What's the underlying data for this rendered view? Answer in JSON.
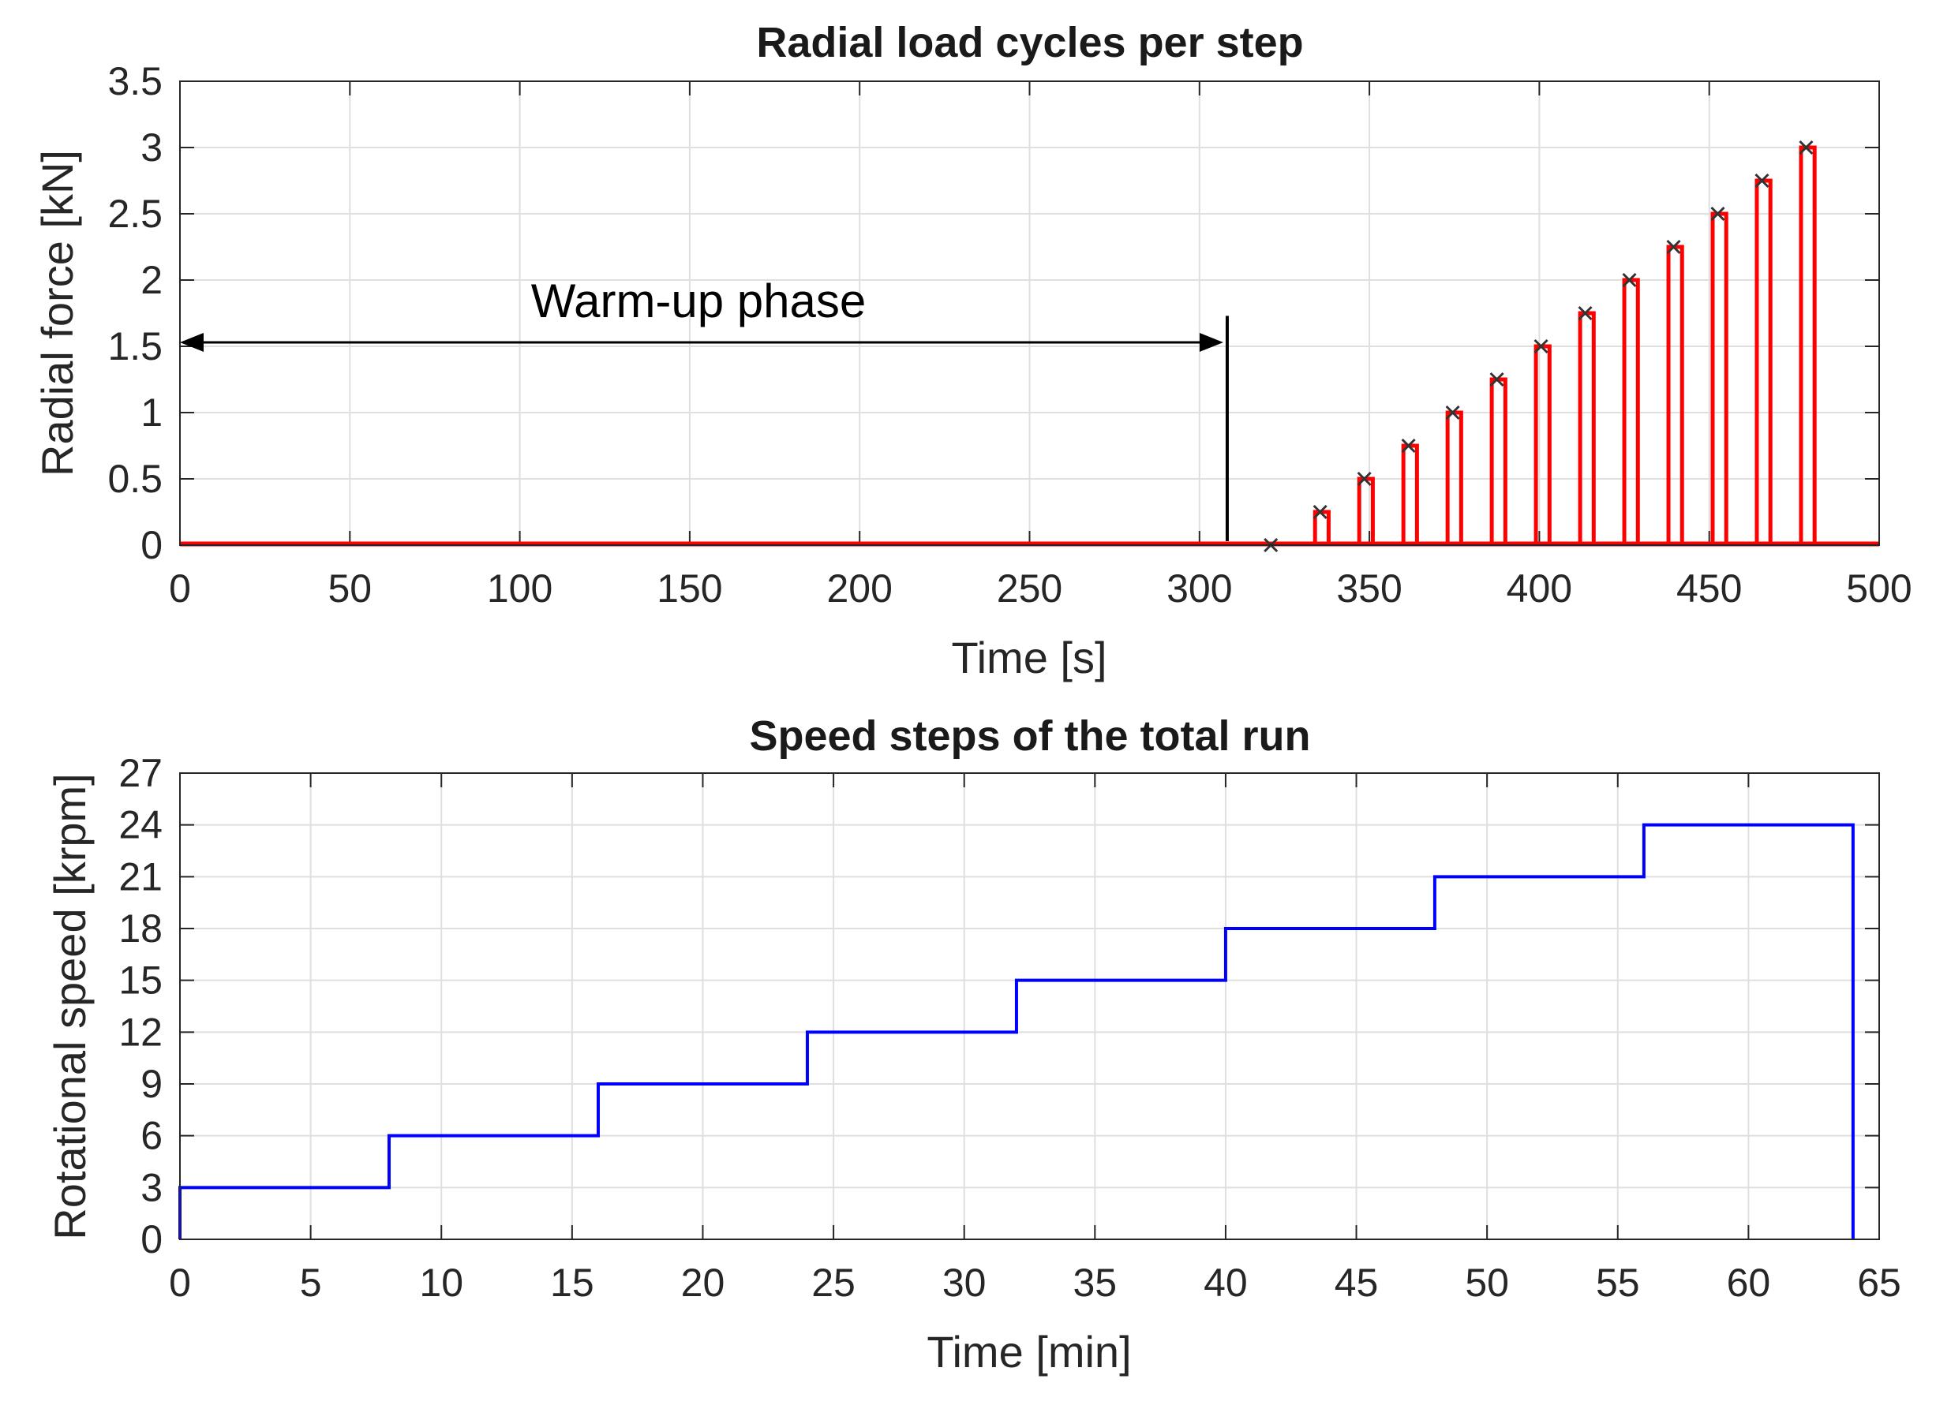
{
  "chart_data": [
    {
      "type": "line",
      "title": "Radial load cycles per step",
      "xlabel": "Time [s]",
      "ylabel": "Radial force [kN]",
      "xlim": [
        0,
        500
      ],
      "ylim": [
        0,
        3.5
      ],
      "xticks": [
        0,
        50,
        100,
        150,
        200,
        250,
        300,
        350,
        400,
        450,
        500
      ],
      "yticks": [
        0,
        0.5,
        1,
        1.5,
        2,
        2.5,
        3,
        3.5
      ],
      "xtick_labels": [
        "0",
        "50",
        "100",
        "150",
        "200",
        "250",
        "300",
        "350",
        "400",
        "450",
        "500"
      ],
      "ytick_labels": [
        "0",
        "0.5",
        "1",
        "1.5",
        "2",
        "2.5",
        "3",
        "3.5"
      ],
      "grid": true,
      "series": [
        {
          "name": "Radial force",
          "color": "#ff0000",
          "pulse_width": 4,
          "pulse_starts": [
            334,
            347,
            360,
            373,
            386,
            399,
            412,
            425,
            438,
            451,
            464,
            477
          ],
          "pulse_levels": [
            0.25,
            0.5,
            0.75,
            1.0,
            1.25,
            1.5,
            1.75,
            2.0,
            2.25,
            2.5,
            2.75,
            3.0
          ],
          "end_time": 500
        }
      ],
      "markers": {
        "color": "#333333",
        "symbol": "x",
        "x": [
          321,
          335.5,
          348.5,
          361.5,
          374.5,
          387.5,
          400.5,
          413.5,
          426.5,
          439.5,
          452.5,
          465.5,
          478.5
        ],
        "y": [
          0,
          0.25,
          0.5,
          0.75,
          1.0,
          1.25,
          1.5,
          1.75,
          2.0,
          2.25,
          2.5,
          2.75,
          3.0
        ]
      },
      "annotation": {
        "text": "Warm-up phase",
        "arrow_from_x": 0,
        "arrow_to_x": 307,
        "arrow_y": 1.53,
        "vertical_line_x": 307,
        "vertical_line_y_range": [
          0.03,
          1.73
        ]
      }
    },
    {
      "type": "line",
      "title": "Speed steps of the total run",
      "xlabel": "Time [min]",
      "ylabel": "Rotational speed [krpm]",
      "xlim": [
        0,
        65
      ],
      "ylim": [
        0,
        27
      ],
      "xticks": [
        0,
        5,
        10,
        15,
        20,
        25,
        30,
        35,
        40,
        45,
        50,
        55,
        60,
        65
      ],
      "yticks": [
        0,
        3,
        6,
        9,
        12,
        15,
        18,
        21,
        24,
        27
      ],
      "xtick_labels": [
        "0",
        "5",
        "10",
        "15",
        "20",
        "25",
        "30",
        "35",
        "40",
        "45",
        "50",
        "55",
        "60",
        "65"
      ],
      "ytick_labels": [
        "0",
        "3",
        "6",
        "9",
        "12",
        "15",
        "18",
        "21",
        "24",
        "27"
      ],
      "grid": true,
      "series": [
        {
          "name": "Rotational speed",
          "color": "#0000ff",
          "step_x": [
            0,
            8,
            16,
            24,
            32,
            40,
            48,
            56,
            64
          ],
          "step_levels": [
            3,
            6,
            9,
            12,
            15,
            18,
            21,
            24
          ]
        }
      ]
    }
  ]
}
